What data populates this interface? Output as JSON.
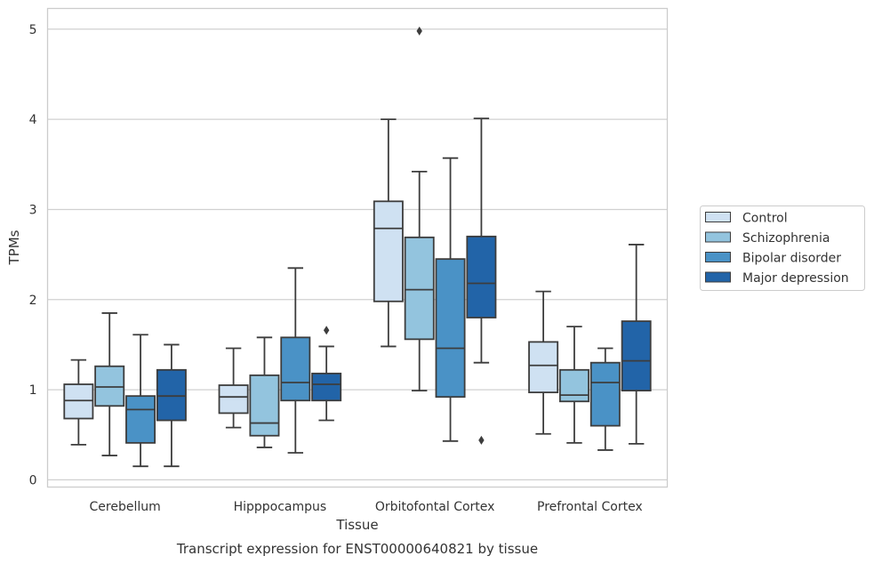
{
  "caption": "Transcript expression for ENST00000640821 by tissue",
  "chart_data": {
    "type": "box",
    "xlabel": "Tissue",
    "ylabel": "TPMs",
    "ylim": [
      -0.08,
      5.23
    ],
    "yticks": [
      0,
      1,
      2,
      3,
      4,
      5
    ],
    "grid": "horizontal",
    "legend_position": "right",
    "categories": [
      "Cerebellum",
      "Hipppocampus",
      "Orbitofontal Cortex",
      "Prefrontal Cortex"
    ],
    "series": [
      {
        "name": "Control",
        "color": "#cfe1f2",
        "boxes": [
          {
            "whislo": 0.39,
            "q1": 0.68,
            "med": 0.88,
            "q3": 1.06,
            "whishi": 1.33,
            "fliers": []
          },
          {
            "whislo": 0.58,
            "q1": 0.74,
            "med": 0.92,
            "q3": 1.05,
            "whishi": 1.46,
            "fliers": []
          },
          {
            "whislo": 1.48,
            "q1": 1.98,
            "med": 2.79,
            "q3": 3.09,
            "whishi": 4.0,
            "fliers": []
          },
          {
            "whislo": 0.51,
            "q1": 0.97,
            "med": 1.27,
            "q3": 1.53,
            "whishi": 2.09,
            "fliers": []
          }
        ]
      },
      {
        "name": "Schizophrenia",
        "color": "#93c4de",
        "boxes": [
          {
            "whislo": 0.27,
            "q1": 0.82,
            "med": 1.03,
            "q3": 1.26,
            "whishi": 1.85,
            "fliers": []
          },
          {
            "whislo": 0.36,
            "q1": 0.49,
            "med": 0.63,
            "q3": 1.16,
            "whishi": 1.58,
            "fliers": []
          },
          {
            "whislo": 0.99,
            "q1": 1.56,
            "med": 2.11,
            "q3": 2.69,
            "whishi": 3.42,
            "fliers": [
              4.98
            ]
          },
          {
            "whislo": 0.41,
            "q1": 0.87,
            "med": 0.94,
            "q3": 1.22,
            "whishi": 1.7,
            "fliers": []
          }
        ]
      },
      {
        "name": "Bipolar disorder",
        "color": "#4a92c6",
        "boxes": [
          {
            "whislo": 0.15,
            "q1": 0.41,
            "med": 0.78,
            "q3": 0.93,
            "whishi": 1.61,
            "fliers": []
          },
          {
            "whislo": 0.3,
            "q1": 0.88,
            "med": 1.08,
            "q3": 1.58,
            "whishi": 2.35,
            "fliers": []
          },
          {
            "whislo": 0.43,
            "q1": 0.92,
            "med": 1.46,
            "q3": 2.45,
            "whishi": 3.57,
            "fliers": []
          },
          {
            "whislo": 0.33,
            "q1": 0.6,
            "med": 1.08,
            "q3": 1.3,
            "whishi": 1.46,
            "fliers": []
          }
        ]
      },
      {
        "name": "Major depression",
        "color": "#2264a8",
        "boxes": [
          {
            "whislo": 0.15,
            "q1": 0.66,
            "med": 0.93,
            "q3": 1.22,
            "whishi": 1.5,
            "fliers": []
          },
          {
            "whislo": 0.66,
            "q1": 0.88,
            "med": 1.06,
            "q3": 1.18,
            "whishi": 1.48,
            "fliers": [
              1.66
            ]
          },
          {
            "whislo": 1.3,
            "q1": 1.8,
            "med": 2.18,
            "q3": 2.7,
            "whishi": 4.01,
            "fliers": [
              0.44
            ]
          },
          {
            "whislo": 0.4,
            "q1": 0.99,
            "med": 1.32,
            "q3": 1.76,
            "whishi": 2.61,
            "fliers": []
          }
        ]
      }
    ]
  }
}
